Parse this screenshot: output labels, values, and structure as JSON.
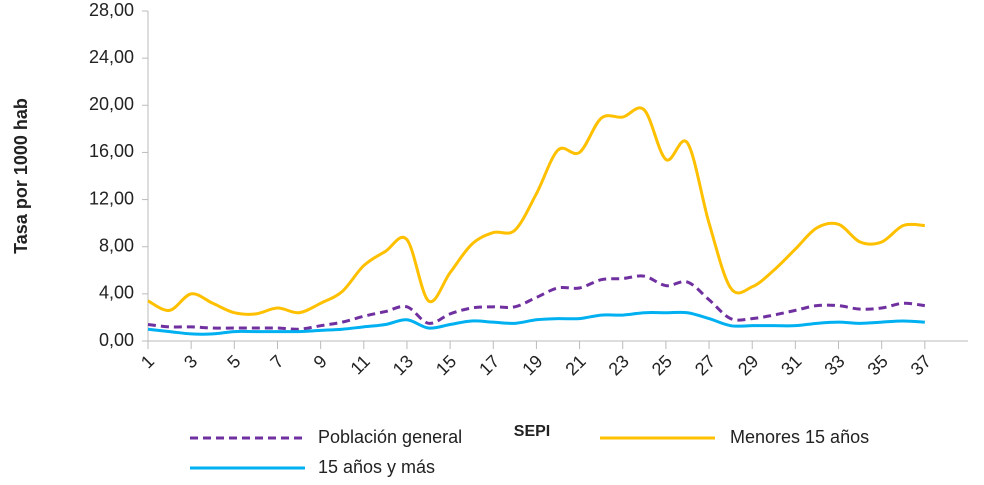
{
  "chart_data": {
    "type": "line",
    "y_label": "Tasa por 1000 hab",
    "x_label": "SEPI",
    "x": [
      1,
      2,
      3,
      4,
      5,
      6,
      7,
      8,
      9,
      10,
      11,
      12,
      13,
      14,
      15,
      16,
      17,
      18,
      19,
      20,
      21,
      22,
      23,
      24,
      25,
      26,
      27,
      28,
      29,
      30,
      31,
      32,
      33,
      34,
      35,
      36,
      37
    ],
    "xlim": [
      1,
      39
    ],
    "xticks": [
      1,
      3,
      5,
      7,
      9,
      11,
      13,
      15,
      17,
      19,
      21,
      23,
      25,
      27,
      29,
      31,
      33,
      35,
      37
    ],
    "ylim": [
      0,
      28
    ],
    "yticks": [
      {
        "value": 0,
        "label": "0,00"
      },
      {
        "value": 4,
        "label": "4,00"
      },
      {
        "value": 8,
        "label": "8,00"
      },
      {
        "value": 12,
        "label": "12,00"
      },
      {
        "value": 16,
        "label": "16,00"
      },
      {
        "value": 20,
        "label": "20,00"
      },
      {
        "value": 24,
        "label": "24,00"
      },
      {
        "value": 28,
        "label": "28,00"
      }
    ],
    "series": [
      {
        "name": "Población general",
        "color": "#7030a0",
        "dashed": true,
        "values": [
          1.4,
          1.2,
          1.2,
          1.1,
          1.1,
          1.1,
          1.1,
          1.0,
          1.3,
          1.6,
          2.1,
          2.5,
          2.9,
          1.5,
          2.3,
          2.8,
          2.9,
          2.9,
          3.7,
          4.5,
          4.5,
          5.2,
          5.3,
          5.5,
          4.7,
          5.0,
          3.5,
          1.9,
          1.9,
          2.2,
          2.6,
          3.0,
          3.0,
          2.7,
          2.8,
          3.2,
          3.0
        ]
      },
      {
        "name": "Menores 15 años",
        "color": "#ffc000",
        "dashed": false,
        "values": [
          3.4,
          2.6,
          4.0,
          3.2,
          2.4,
          2.3,
          2.8,
          2.4,
          3.2,
          4.2,
          6.4,
          7.6,
          8.6,
          3.4,
          5.8,
          8.2,
          9.2,
          9.4,
          12.5,
          16.2,
          16.0,
          18.9,
          19.0,
          19.6,
          15.4,
          16.8,
          10.0,
          4.5,
          4.6,
          6.0,
          7.8,
          9.6,
          9.9,
          8.4,
          8.4,
          9.8,
          9.8
        ]
      },
      {
        "name": "15 años y más",
        "color": "#00b0f0",
        "dashed": false,
        "values": [
          1.0,
          0.8,
          0.6,
          0.6,
          0.8,
          0.8,
          0.8,
          0.8,
          0.9,
          1.0,
          1.2,
          1.4,
          1.8,
          1.1,
          1.4,
          1.7,
          1.6,
          1.5,
          1.8,
          1.9,
          1.9,
          2.2,
          2.2,
          2.4,
          2.4,
          2.4,
          1.9,
          1.3,
          1.3,
          1.3,
          1.3,
          1.5,
          1.6,
          1.5,
          1.6,
          1.7,
          1.6
        ]
      }
    ]
  }
}
